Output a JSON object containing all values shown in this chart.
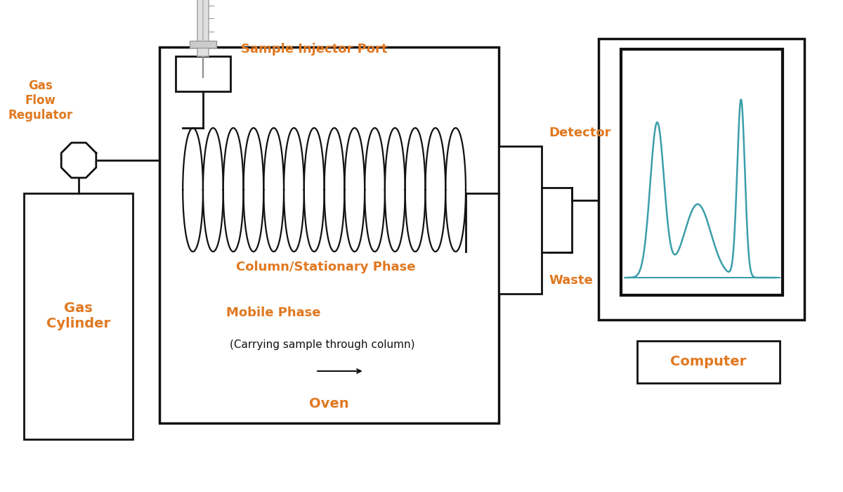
{
  "bg_color": "#ffffff",
  "orange": "#E07820",
  "black": "#111111",
  "teal": "#3a9eaa",
  "lw": 2.0,
  "labels": {
    "gas_flow_regulator": "Gas\nFlow\nRegulator",
    "gas_cylinder": "Gas\nCylinder",
    "sample_injector": "Sample Injector Port",
    "column": "Column/Stationary Phase",
    "mobile_phase": "Mobile Phase",
    "mobile_phase_sub": "(Carrying sample through column)",
    "oven": "Oven",
    "detector": "Detector",
    "waste": "Waste",
    "computer": "Computer"
  },
  "figsize": [
    12.0,
    7.0
  ],
  "dpi": 100,
  "xlim": [
    0,
    12
  ],
  "ylim": [
    0,
    7
  ]
}
